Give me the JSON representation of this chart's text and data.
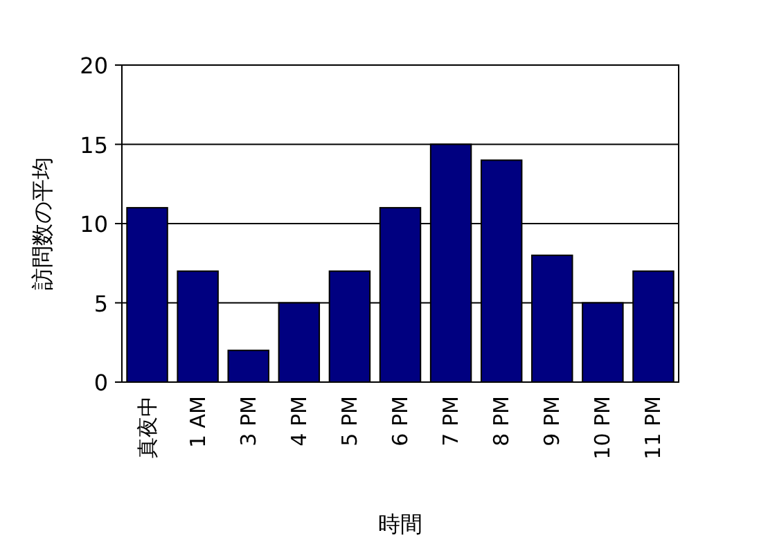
{
  "chart_data": {
    "type": "bar",
    "xlabel": "時間",
    "ylabel": "訪問数の平均",
    "categories": [
      "真夜中",
      "1 AM",
      "3 PM",
      "4 PM",
      "5 PM",
      "6 PM",
      "7 PM",
      "8 PM",
      "9 PM",
      "10 PM",
      "11 PM"
    ],
    "values": [
      11,
      7,
      2,
      5,
      7,
      11,
      15,
      14,
      8,
      5,
      7
    ],
    "color": "#000080",
    "ylim": [
      0,
      20
    ],
    "yticks": [
      0,
      5,
      10,
      15,
      20
    ],
    "grid": "y"
  }
}
